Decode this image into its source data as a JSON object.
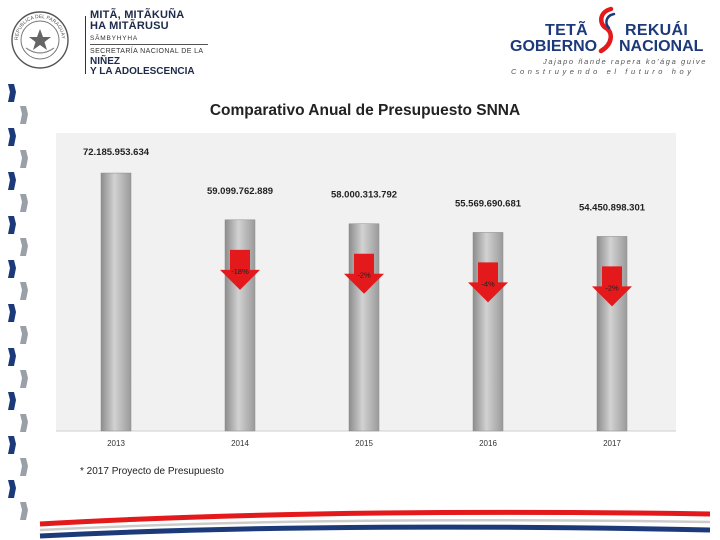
{
  "header": {
    "org_line1": "MITÃ, MITÃKUÑA",
    "org_line2": "HA MITÃRUSU",
    "org_sub": "SÃMBYHYHA",
    "org_secretaria": "SECRETARÍA NACIONAL DE LA",
    "org_ninez": "NIÑEZ",
    "org_adolescencia": "Y LA ADOLESCENCIA",
    "seal_top_text": "REPUBLICA DEL PARAGUAY",
    "gov_teta": "TETÃ",
    "gov_rekuai": "REKUÁI",
    "gov_gobierno": "GOBIERNO",
    "gov_nacional": "NACIONAL",
    "gov_motto1": "Jajapo ñande rapera ko'ága guive",
    "gov_motto2": "Construyendo el futuro hoy"
  },
  "footnote": "* 2017 Proyecto de Presupuesto",
  "colors": {
    "navy": "#1c3a7a",
    "red": "#e3191b",
    "bar": "#a9a9a9",
    "panel": "#f1f1f1"
  },
  "chart_data": {
    "type": "bar",
    "title": "Comparativo Anual de Presupuesto SNNA",
    "categories": [
      "2013",
      "2014",
      "2015",
      "2016",
      "2017"
    ],
    "values": [
      72185953634,
      59099762889,
      58000313792,
      55569690681,
      54450898301
    ],
    "value_labels": [
      "72.185.953.634",
      "59.099.762.889",
      "58.000.313.792",
      "55.569.690.681",
      "54.450.898.301"
    ],
    "change_labels": [
      "",
      "-18%",
      "-2%",
      "-4%",
      "-2%"
    ],
    "ylim": [
      0,
      75000000000
    ],
    "xlabel": "",
    "ylabel": "",
    "grid": false,
    "legend": "none"
  }
}
